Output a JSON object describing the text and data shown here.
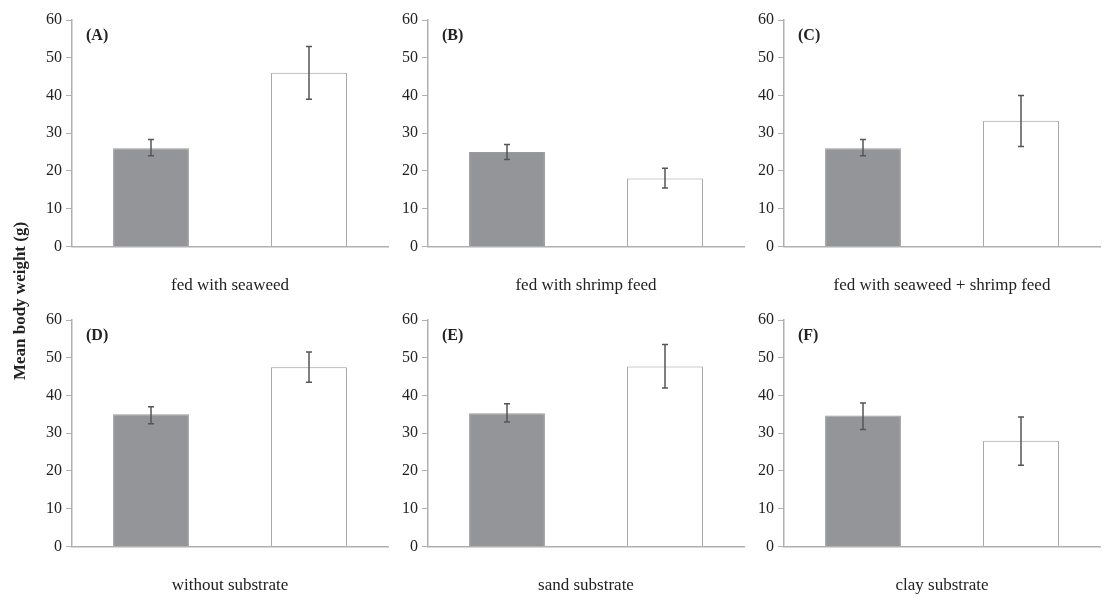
{
  "chart_data": [
    {
      "type": "bar",
      "title": "(A)",
      "xlabel": "fed with seaweed",
      "ylabel": "Mean body weight (g)",
      "categories": [
        null,
        null
      ],
      "values": [
        26,
        46
      ],
      "colors": [
        "#939598",
        "#ffffff"
      ],
      "errors": [
        [
          24,
          28.3
        ],
        [
          39,
          53
        ]
      ],
      "ylim": [
        0,
        60
      ],
      "yticks": [
        0,
        10,
        20,
        30,
        40,
        50,
        60
      ],
      "grid": false,
      "legend": false
    },
    {
      "type": "bar",
      "title": "(B)",
      "xlabel": "fed with shrimp feed",
      "categories": [
        null,
        null
      ],
      "values": [
        25,
        18
      ],
      "colors": [
        "#939598",
        "#ffffff"
      ],
      "errors": [
        [
          23,
          27
        ],
        [
          15.5,
          20.7
        ]
      ],
      "ylim": [
        0,
        60
      ],
      "yticks": [
        0,
        10,
        20,
        30,
        40,
        50,
        60
      ],
      "grid": false,
      "legend": false
    },
    {
      "type": "bar",
      "title": "(C)",
      "xlabel": "fed with seaweed + shrimp feed",
      "categories": [
        null,
        null
      ],
      "values": [
        26,
        33.3
      ],
      "colors": [
        "#939598",
        "#ffffff"
      ],
      "errors": [
        [
          24,
          28.3
        ],
        [
          26.5,
          40
        ]
      ],
      "ylim": [
        0,
        60
      ],
      "yticks": [
        0,
        10,
        20,
        30,
        40,
        50,
        60
      ],
      "grid": false,
      "legend": false
    },
    {
      "type": "bar",
      "title": "(D)",
      "xlabel": "without substrate",
      "categories": [
        null,
        null
      ],
      "values": [
        35,
        47.5
      ],
      "colors": [
        "#939598",
        "#ffffff"
      ],
      "errors": [
        [
          32.5,
          37
        ],
        [
          43.5,
          51.5
        ]
      ],
      "ylim": [
        0,
        60
      ],
      "yticks": [
        0,
        10,
        20,
        30,
        40,
        50,
        60
      ],
      "grid": false,
      "legend": false
    },
    {
      "type": "bar",
      "title": "(E)",
      "xlabel": "sand substrate",
      "categories": [
        null,
        null
      ],
      "values": [
        35.3,
        47.7
      ],
      "colors": [
        "#939598",
        "#ffffff"
      ],
      "errors": [
        [
          33,
          37.8
        ],
        [
          42,
          53.5
        ]
      ],
      "ylim": [
        0,
        60
      ],
      "yticks": [
        0,
        10,
        20,
        30,
        40,
        50,
        60
      ],
      "grid": false,
      "legend": false
    },
    {
      "type": "bar",
      "title": "(F)",
      "xlabel": "clay substrate",
      "categories": [
        null,
        null
      ],
      "values": [
        34.7,
        28
      ],
      "colors": [
        "#939598",
        "#ffffff"
      ],
      "errors": [
        [
          31,
          38
        ],
        [
          21.5,
          34.3
        ]
      ],
      "ylim": [
        0,
        60
      ],
      "yticks": [
        0,
        10,
        20,
        30,
        40,
        50,
        60
      ],
      "grid": false,
      "legend": false
    }
  ]
}
